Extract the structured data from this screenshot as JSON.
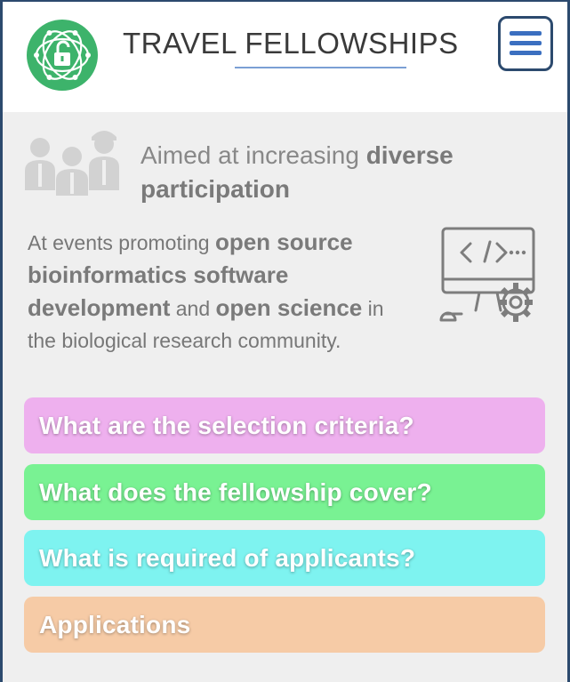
{
  "header": {
    "title": "TRAVEL FELLOWSHIPS",
    "logo_icon": "open-lock-network-icon",
    "menu_icon": "hamburger-menu-icon",
    "colors": {
      "logo": "#3db36b",
      "menu": "#3b6fc0",
      "border": "#2c4a6e"
    }
  },
  "aim": {
    "icon": "people-group-icon",
    "prefix": "Aimed at increasing ",
    "strong": "diverse participation"
  },
  "events": {
    "icon": "code-computer-gear-icon",
    "part1": "At events promoting ",
    "strong1": "open source bioinformatics software development",
    "part2": " and ",
    "strong2": "open science",
    "part3": " in the biological research community."
  },
  "accordion": [
    {
      "label": "What are the selection criteria?",
      "color": "#eeb0ee"
    },
    {
      "label": "What does the fellowship cover?",
      "color": "#79f293"
    },
    {
      "label": "What is required of applicants?",
      "color": "#7ef3f0"
    },
    {
      "label": "Applications",
      "color": "#f6cba6"
    }
  ]
}
